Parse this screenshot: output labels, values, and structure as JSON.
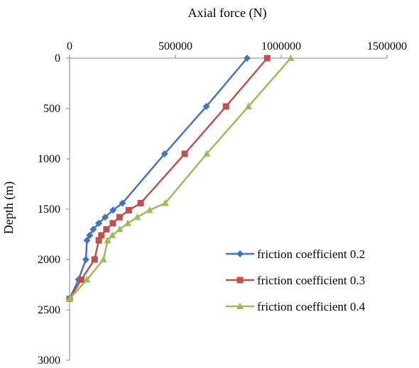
{
  "chart_data": {
    "type": "line",
    "title": "",
    "xlabel": "Axial force (N)",
    "ylabel": "Depth (m)",
    "x_axis_position": "top",
    "y_axis_inverted": true,
    "xlim": [
      0,
      1500000
    ],
    "ylim": [
      0,
      3000
    ],
    "x_ticks": [
      0,
      500000,
      1000000,
      1500000
    ],
    "x_tick_labels": [
      "0",
      "500000",
      "1000000",
      "1500000"
    ],
    "y_ticks": [
      0,
      500,
      1000,
      1500,
      2000,
      2500,
      3000
    ],
    "y_tick_labels": [
      "0",
      "500",
      "1000",
      "1500",
      "2000",
      "2500",
      "3000"
    ],
    "grid": false,
    "legend_position": "bottom-right",
    "series": [
      {
        "name": "friction coefficient 0.2",
        "color": "#4472C4",
        "marker": "diamond",
        "points": [
          [
            839000,
            0
          ],
          [
            646000,
            480
          ],
          [
            449000,
            950
          ],
          [
            250000,
            1440
          ],
          [
            205000,
            1510
          ],
          [
            168000,
            1580
          ],
          [
            138000,
            1640
          ],
          [
            112000,
            1700
          ],
          [
            95000,
            1760
          ],
          [
            82000,
            1810
          ],
          [
            77000,
            2000
          ],
          [
            42000,
            2200
          ],
          [
            0,
            2390
          ]
        ]
      },
      {
        "name": "friction coefficient 0.3",
        "color": "#C0504D",
        "marker": "square",
        "points": [
          [
            934000,
            0
          ],
          [
            739000,
            480
          ],
          [
            544000,
            950
          ],
          [
            336000,
            1440
          ],
          [
            280000,
            1510
          ],
          [
            236000,
            1580
          ],
          [
            204000,
            1640
          ],
          [
            174000,
            1700
          ],
          [
            150000,
            1760
          ],
          [
            138000,
            1810
          ],
          [
            118000,
            2000
          ],
          [
            55000,
            2200
          ],
          [
            0,
            2390
          ]
        ]
      },
      {
        "name": "friction coefficient 0.4",
        "color": "#9BBB59",
        "marker": "triangle",
        "points": [
          [
            1045000,
            0
          ],
          [
            845000,
            480
          ],
          [
            648000,
            950
          ],
          [
            452000,
            1440
          ],
          [
            378000,
            1510
          ],
          [
            320000,
            1580
          ],
          [
            275000,
            1640
          ],
          [
            237000,
            1700
          ],
          [
            202000,
            1760
          ],
          [
            180000,
            1810
          ],
          [
            160000,
            2000
          ],
          [
            82000,
            2200
          ],
          [
            0,
            2390
          ]
        ]
      }
    ]
  }
}
